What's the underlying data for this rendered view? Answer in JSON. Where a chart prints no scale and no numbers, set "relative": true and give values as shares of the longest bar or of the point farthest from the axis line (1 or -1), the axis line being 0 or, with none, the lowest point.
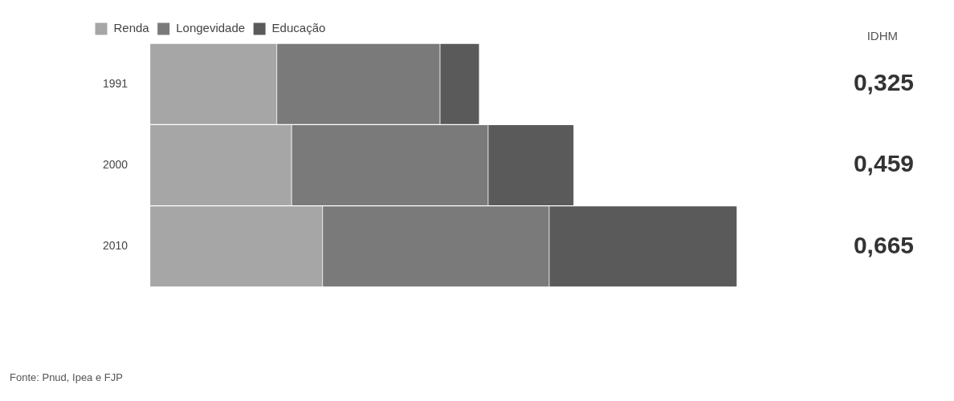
{
  "chart_data": {
    "type": "bar",
    "orientation": "horizontal",
    "stacked": true,
    "relative": true,
    "categories": [
      "1991",
      "2000",
      "2010"
    ],
    "series": [
      {
        "name": "Renda",
        "color": "#a6a6a6",
        "values": [
          0.216,
          0.241,
          0.294
        ]
      },
      {
        "name": "Longevidade",
        "color": "#7a7a7a",
        "values": [
          0.278,
          0.335,
          0.386
        ]
      },
      {
        "name": "Educação",
        "color": "#5a5a5a",
        "values": [
          0.067,
          0.146,
          0.32
        ]
      }
    ],
    "legend": "top left",
    "grid": false,
    "annotations": [
      "IDHM",
      "0,325",
      "0,459",
      "0,665",
      "Fonte: Pnud, Ipea e FJP"
    ]
  }
}
